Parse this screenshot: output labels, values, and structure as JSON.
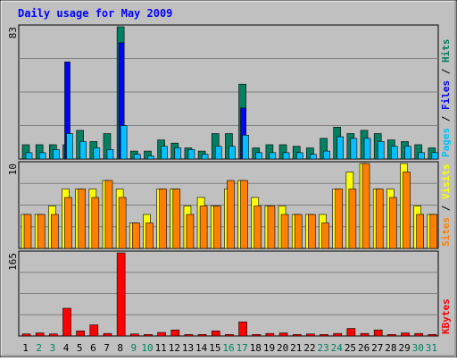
{
  "chart_data": {
    "type": "bar",
    "title": "Daily usage for May 2009",
    "categories": [
      "1",
      "2",
      "3",
      "4",
      "5",
      "6",
      "7",
      "8",
      "9",
      "10",
      "11",
      "12",
      "13",
      "14",
      "15",
      "16",
      "17",
      "18",
      "19",
      "20",
      "21",
      "22",
      "23",
      "24",
      "25",
      "26",
      "27",
      "28",
      "29",
      "30",
      "31"
    ],
    "weekend_days": [
      "2",
      "3",
      "9",
      "10",
      "16",
      "17",
      "23",
      "24",
      "30",
      "31"
    ],
    "panels": [
      {
        "id": "top",
        "ymax_label": "83",
        "ylim": [
          0,
          83
        ],
        "side_label_parts": [
          "Pages",
          "Files",
          "Hits"
        ],
        "series": [
          {
            "name": "Hits",
            "color": "#008060",
            "values": [
              9,
              9,
              9,
              9,
              18,
              11,
              16,
              83,
              5,
              5,
              12,
              10,
              7,
              5,
              16,
              16,
              47,
              7,
              9,
              9,
              8,
              7,
              13,
              20,
              16,
              18,
              16,
              12,
              11,
              9,
              7
            ]
          },
          {
            "name": "Files",
            "color": "#0000ff",
            "values": [
              0,
              0,
              0,
              61,
              0,
              0,
              0,
              73,
              0,
              0,
              0,
              0,
              0,
              0,
              0,
              0,
              32,
              0,
              0,
              0,
              0,
              0,
              0,
              0,
              0,
              0,
              0,
              0,
              0,
              0,
              0
            ]
          },
          {
            "name": "Pages",
            "color": "#00c0ff",
            "values": [
              4,
              4,
              6,
              16,
              11,
              7,
              6,
              21,
              3,
              2,
              8,
              7,
              6,
              3,
              8,
              8,
              15,
              4,
              4,
              4,
              4,
              3,
              5,
              14,
              13,
              13,
              11,
              8,
              8,
              4,
              4
            ]
          }
        ]
      },
      {
        "id": "middle",
        "ymax_label": "10",
        "ylim": [
          0,
          10
        ],
        "side_label_parts": [
          "Sites",
          "Visits"
        ],
        "series": [
          {
            "name": "Visits",
            "color": "#ffff00",
            "values": [
              4,
              4,
              5,
              7,
              7,
              7,
              8,
              7,
              3,
              4,
              7,
              7,
              5,
              6,
              5,
              7,
              8,
              6,
              5,
              5,
              4,
              4,
              4,
              7,
              9,
              10,
              7,
              7,
              10,
              5,
              4
            ]
          },
          {
            "name": "Sites",
            "color": "#ff8000",
            "values": [
              4,
              4,
              4,
              6,
              7,
              6,
              8,
              6,
              3,
              3,
              7,
              7,
              4,
              5,
              5,
              8,
              8,
              5,
              5,
              4,
              4,
              4,
              3,
              7,
              7,
              10,
              7,
              6,
              9,
              4,
              4
            ]
          }
        ]
      },
      {
        "id": "bottom",
        "ymax_label": "165",
        "ylim": [
          0,
          165
        ],
        "side_label_parts": [
          "KBytes"
        ],
        "series": [
          {
            "name": "KBytes",
            "color": "#ff0000",
            "values": [
              4,
              6,
              4,
              55,
              10,
              22,
              5,
              165,
              4,
              3,
              7,
              12,
              3,
              3,
              10,
              3,
              28,
              3,
              5,
              6,
              3,
              4,
              3,
              5,
              15,
              5,
              12,
              3,
              6,
              5,
              3
            ]
          }
        ]
      }
    ]
  }
}
